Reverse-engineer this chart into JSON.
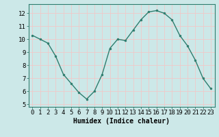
{
  "x": [
    0,
    1,
    2,
    3,
    4,
    5,
    6,
    7,
    8,
    9,
    10,
    11,
    12,
    13,
    14,
    15,
    16,
    17,
    18,
    19,
    20,
    21,
    22,
    23
  ],
  "y": [
    10.3,
    10.0,
    9.7,
    8.7,
    7.3,
    6.6,
    5.9,
    5.4,
    6.0,
    7.3,
    9.3,
    10.0,
    9.9,
    10.7,
    11.5,
    12.1,
    12.2,
    12.0,
    11.5,
    10.3,
    9.5,
    8.4,
    7.0,
    6.2
  ],
  "xlabel": "Humidex (Indice chaleur)",
  "ylim": [
    4.8,
    12.7
  ],
  "xlim": [
    -0.5,
    23.5
  ],
  "yticks": [
    5,
    6,
    7,
    8,
    9,
    10,
    11,
    12
  ],
  "xticks": [
    0,
    1,
    2,
    3,
    4,
    5,
    6,
    7,
    8,
    9,
    10,
    11,
    12,
    13,
    14,
    15,
    16,
    17,
    18,
    19,
    20,
    21,
    22,
    23
  ],
  "line_color": "#2e7d6e",
  "marker_color": "#2e7d6e",
  "bg_color": "#cce8e8",
  "grid_color": "#e8f8f8",
  "xlabel_fontsize": 7.0,
  "tick_fontsize": 6.5
}
